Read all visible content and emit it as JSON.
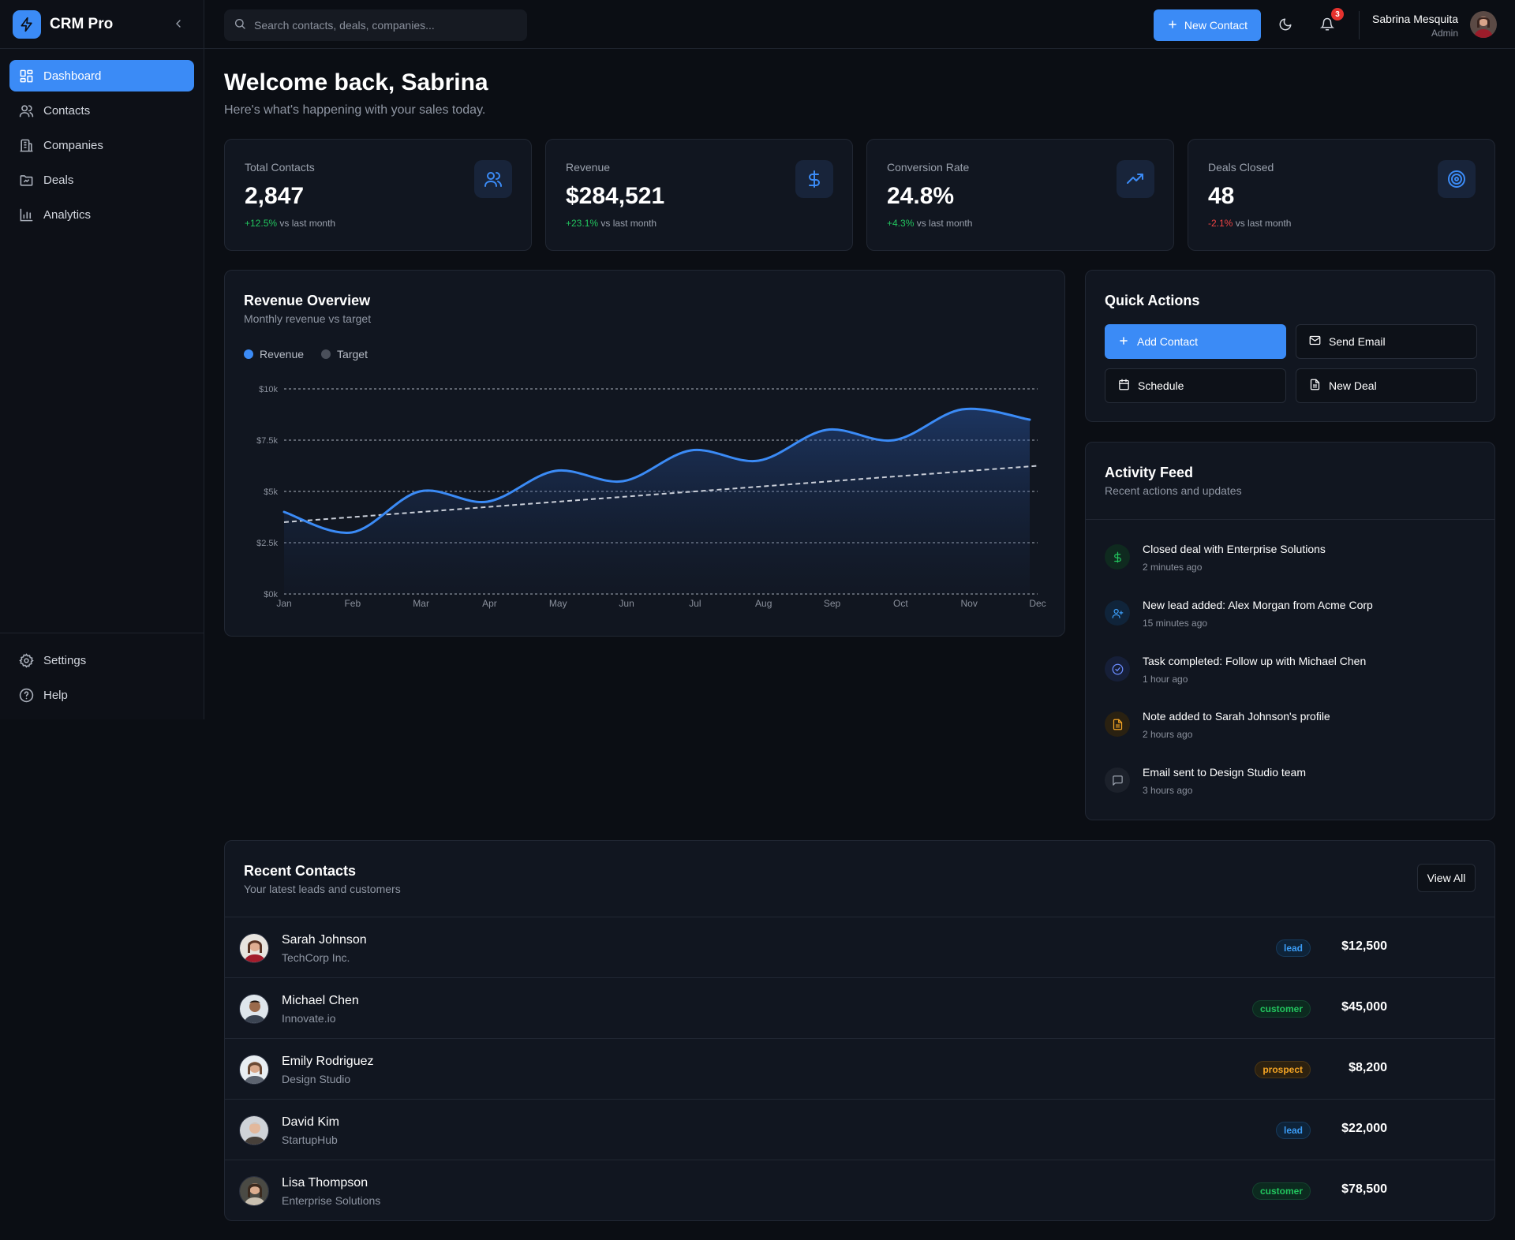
{
  "app": {
    "name": "CRM Pro"
  },
  "sidebar": {
    "items": [
      {
        "label": "Dashboard",
        "icon": "dashboard-icon",
        "active": true
      },
      {
        "label": "Contacts",
        "icon": "users-icon"
      },
      {
        "label": "Companies",
        "icon": "building-icon"
      },
      {
        "label": "Deals",
        "icon": "folder-icon"
      },
      {
        "label": "Analytics",
        "icon": "bar-chart-icon"
      }
    ],
    "bottom": [
      {
        "label": "Settings",
        "icon": "gear-icon"
      },
      {
        "label": "Help",
        "icon": "help-icon"
      }
    ]
  },
  "header": {
    "search_placeholder": "Search contacts, deals, companies...",
    "new_contact_label": "New Contact",
    "notification_count": "3",
    "user": {
      "name": "Sabrina Mesquita",
      "role": "Admin"
    }
  },
  "welcome": {
    "title": "Welcome back, Sabrina",
    "subtitle": "Here's what's happening with your sales today."
  },
  "stats": [
    {
      "label": "Total Contacts",
      "value": "2,847",
      "change": "+12.5%",
      "trend": "up",
      "suffix": "vs last month",
      "icon": "users-icon"
    },
    {
      "label": "Revenue",
      "value": "$284,521",
      "change": "+23.1%",
      "trend": "up",
      "suffix": "vs last month",
      "icon": "dollar-icon"
    },
    {
      "label": "Conversion Rate",
      "value": "24.8%",
      "change": "+4.3%",
      "trend": "up",
      "suffix": "vs last month",
      "icon": "trending-up-icon"
    },
    {
      "label": "Deals Closed",
      "value": "48",
      "change": "-2.1%",
      "trend": "down",
      "suffix": "vs last month",
      "icon": "target-icon"
    }
  ],
  "revenue_chart": {
    "title": "Revenue Overview",
    "subtitle": "Monthly revenue vs target",
    "legend": {
      "revenue": "Revenue",
      "target": "Target"
    }
  },
  "chart_data": {
    "type": "line",
    "title": "Revenue Overview",
    "categories": [
      "Jan",
      "Feb",
      "Mar",
      "Apr",
      "May",
      "Jun",
      "Jul",
      "Aug",
      "Sep",
      "Oct",
      "Nov",
      "Dec"
    ],
    "series": [
      {
        "name": "Revenue",
        "values": [
          4000,
          3000,
          5000,
          4500,
          6000,
          5500,
          7000,
          6500,
          8000,
          7500,
          9000,
          8500
        ],
        "color": "#3b8bf6"
      },
      {
        "name": "Target",
        "values": [
          3500,
          3750,
          4000,
          4250,
          4500,
          4750,
          5000,
          5250,
          5500,
          5750,
          6000,
          6250
        ],
        "color": "#c9ced8"
      }
    ],
    "y_ticks": [
      "$0k",
      "$2.5k",
      "$5k",
      "$7.5k",
      "$10k"
    ],
    "ylim": [
      0,
      10000
    ],
    "grid": true,
    "legend_position": "top-left"
  },
  "quick_actions": {
    "title": "Quick Actions",
    "items": [
      {
        "label": "Add Contact",
        "icon": "plus-icon",
        "primary": true
      },
      {
        "label": "Send Email",
        "icon": "mail-icon"
      },
      {
        "label": "Schedule",
        "icon": "calendar-icon"
      },
      {
        "label": "New Deal",
        "icon": "document-icon"
      }
    ]
  },
  "activity": {
    "title": "Activity Feed",
    "subtitle": "Recent actions and updates",
    "items": [
      {
        "text": "Closed deal with Enterprise Solutions",
        "time": "2 minutes ago",
        "icon": "dollar-icon",
        "color": "#22c55e",
        "bg": "#0f2a1f"
      },
      {
        "text": "New lead added: Alex Morgan from Acme Corp",
        "time": "15 minutes ago",
        "icon": "user-plus-icon",
        "color": "#3b9cf6",
        "bg": "#10243a"
      },
      {
        "text": "Task completed: Follow up with Michael Chen",
        "time": "1 hour ago",
        "icon": "check-circle-icon",
        "color": "#6b8cff",
        "bg": "#161f38"
      },
      {
        "text": "Note added to Sarah Johnson's profile",
        "time": "2 hours ago",
        "icon": "note-icon",
        "color": "#f5a524",
        "bg": "#2a2111"
      },
      {
        "text": "Email sent to Design Studio team",
        "time": "3 hours ago",
        "icon": "message-icon",
        "color": "#9aa1ad",
        "bg": "#1c212b"
      }
    ]
  },
  "recent_contacts": {
    "title": "Recent Contacts",
    "subtitle": "Your latest leads and customers",
    "view_all_label": "View All",
    "rows": [
      {
        "name": "Sarah Johnson",
        "company": "TechCorp Inc.",
        "status": "lead",
        "amount": "$12,500"
      },
      {
        "name": "Michael Chen",
        "company": "Innovate.io",
        "status": "customer",
        "amount": "$45,000"
      },
      {
        "name": "Emily Rodriguez",
        "company": "Design Studio",
        "status": "prospect",
        "amount": "$8,200"
      },
      {
        "name": "David Kim",
        "company": "StartupHub",
        "status": "lead",
        "amount": "$22,000"
      },
      {
        "name": "Lisa Thompson",
        "company": "Enterprise Solutions",
        "status": "customer",
        "amount": "$78,500"
      }
    ]
  }
}
